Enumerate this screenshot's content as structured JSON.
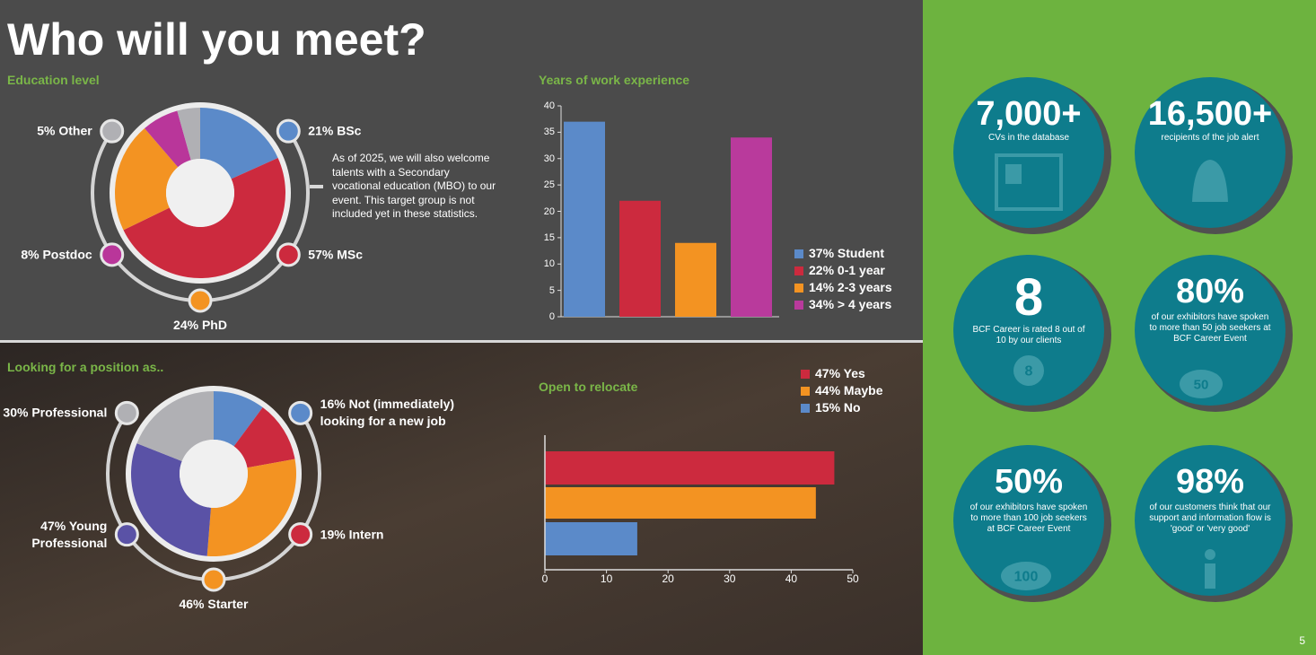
{
  "title": "Who will you meet?",
  "chart_data": [
    {
      "type": "donut",
      "title": "Education level",
      "values": [
        21,
        57,
        24,
        8,
        5
      ],
      "value_labels": [
        "21% BSc",
        "57% MSc",
        "24% PhD",
        "8% Postdoc",
        "5% Other"
      ],
      "colors": [
        "#5b8ac9",
        "#cc2a3e",
        "#f39322",
        "#b9369a",
        "#b0b0b4"
      ],
      "note": "As of 2025, we will also welcome talents with a Secondary vocational education (MBO) to our event. This target group is not included yet in these statistics."
    },
    {
      "type": "bar",
      "title": "Years of work experience",
      "values": [
        37,
        22,
        14,
        34
      ],
      "value_labels": [
        "37% Student",
        "22% 0-1 year",
        "14% 2-3 years",
        "34% > 4 years"
      ],
      "colors": [
        "#5b8ac9",
        "#cc2a3e",
        "#f39322",
        "#b93a9c"
      ],
      "ylim": [
        0,
        40
      ],
      "yticks": [
        0,
        5,
        10,
        15,
        20,
        25,
        30,
        35,
        40
      ]
    },
    {
      "type": "donut",
      "title": "Looking for a position as..",
      "values": [
        16,
        19,
        46,
        47,
        30
      ],
      "value_labels": [
        "16% Not (immediately) looking for a new job",
        "19% Intern",
        "46% Starter",
        "47% Young Professional",
        "30% Professional"
      ],
      "colors": [
        "#5b8ac9",
        "#cc2a3e",
        "#f39322",
        "#5a52a6",
        "#b0b0b4"
      ]
    },
    {
      "type": "hbar",
      "title": "Open to relocate",
      "values": [
        47,
        44,
        15
      ],
      "value_labels": [
        "47% Yes",
        "44% Maybe",
        "15% No"
      ],
      "colors": [
        "#cc2a3e",
        "#f39322",
        "#5b8ac9"
      ],
      "xlim": [
        0,
        50
      ],
      "xticks": [
        0,
        10,
        20,
        30,
        40,
        50
      ]
    }
  ],
  "stats": [
    {
      "value": "7,000+",
      "text": "CVs in the database"
    },
    {
      "value": "16,500+",
      "text": "recipients of the job alert"
    },
    {
      "value": "8",
      "text": "BCF Career is rated 8 out of 10 by our clients",
      "icon_text": "8"
    },
    {
      "value": "80%",
      "text": "of our exhibitors have spoken to more than 50 job seekers at BCF Career Event",
      "icon_text": "50"
    },
    {
      "value": "50%",
      "text": "of our exhibitors have spoken to more than 100 job seekers at BCF Career Event",
      "icon_text": "100"
    },
    {
      "value": "98%",
      "text": "of our customers think that our support and information flow is 'good' or 'very good'"
    }
  ],
  "page_number": "5"
}
